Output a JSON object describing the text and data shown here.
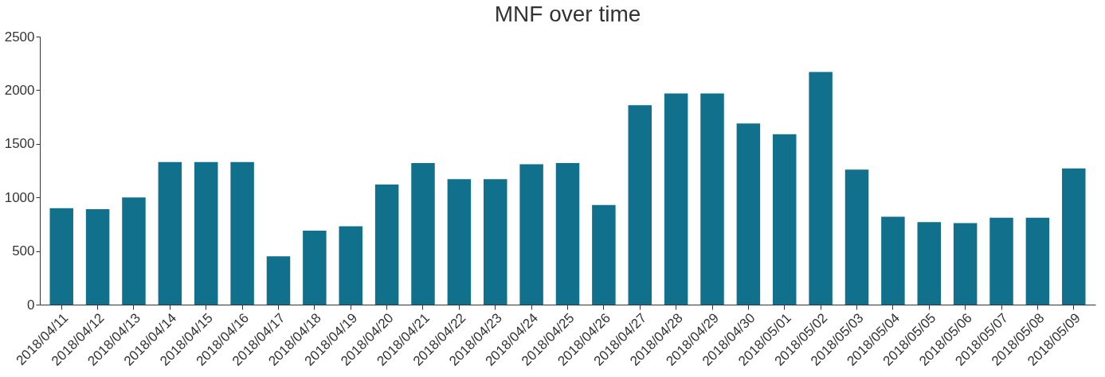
{
  "chart_data": {
    "type": "bar",
    "title": "MNF over time",
    "categories": [
      "2018/04/11",
      "2018/04/12",
      "2018/04/13",
      "2018/04/14",
      "2018/04/15",
      "2018/04/16",
      "2018/04/17",
      "2018/04/18",
      "2018/04/19",
      "2018/04/20",
      "2018/04/21",
      "2018/04/22",
      "2018/04/23",
      "2018/04/24",
      "2018/04/25",
      "2018/04/26",
      "2018/04/27",
      "2018/04/28",
      "2018/04/29",
      "2018/04/30",
      "2018/05/01",
      "2018/05/02",
      "2018/05/03",
      "2018/05/04",
      "2018/05/05",
      "2018/05/06",
      "2018/05/07",
      "2018/05/08",
      "2018/05/09"
    ],
    "values": [
      900,
      890,
      1000,
      1330,
      1330,
      1330,
      450,
      690,
      730,
      1120,
      1320,
      1170,
      1170,
      1310,
      1320,
      930,
      1860,
      1970,
      1970,
      1690,
      1590,
      2170,
      1260,
      820,
      770,
      760,
      810,
      810,
      1270
    ],
    "color": "#11718c",
    "ylim": [
      0,
      2500
    ],
    "yticks": [
      0,
      500,
      1000,
      1500,
      2000,
      2500
    ],
    "grid": false
  }
}
